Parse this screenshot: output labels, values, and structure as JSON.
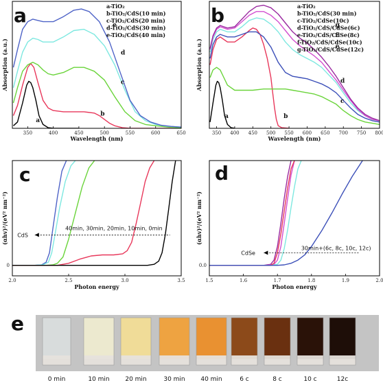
{
  "chart_data": [
    {
      "type": "line",
      "panel_label": "a",
      "xlabel": "Wavelength (nm)",
      "ylabel": "Absorption (a.u.)",
      "xlim": [
        320,
        650
      ],
      "xticks": [
        350,
        400,
        450,
        500,
        550,
        600,
        650
      ],
      "ylim": [
        0,
        1
      ],
      "legend": [
        "a-TiO₂",
        "b-TiO₂/CdS(10 min)",
        "c-TiO₂/CdS(20 min)",
        "d-TiO₂/CdS(30 min)",
        "e-TiO₂/CdS(40 min)"
      ],
      "legend_placement": "top-right",
      "series": [
        {
          "name": "a",
          "color": "#000000",
          "x": [
            322,
            330,
            340,
            348,
            352,
            356,
            360,
            366,
            372,
            380,
            390,
            400,
            420,
            450
          ],
          "y": [
            0.02,
            0.05,
            0.2,
            0.34,
            0.37,
            0.36,
            0.32,
            0.22,
            0.1,
            0.03,
            0.005,
            0,
            0,
            0
          ]
        },
        {
          "name": "b",
          "color": "#e8375a",
          "x": [
            322,
            330,
            340,
            350,
            356,
            362,
            370,
            380,
            390,
            400,
            420,
            440,
            460,
            480,
            490,
            500,
            510,
            520,
            535,
            550,
            580,
            620,
            650
          ],
          "y": [
            0.1,
            0.18,
            0.34,
            0.48,
            0.51,
            0.48,
            0.36,
            0.22,
            0.16,
            0.14,
            0.13,
            0.13,
            0.13,
            0.12,
            0.1,
            0.07,
            0.04,
            0.02,
            0.005,
            0,
            0,
            0,
            0
          ]
        },
        {
          "name": "c",
          "color": "#6ad43a",
          "x": [
            322,
            330,
            340,
            350,
            360,
            370,
            380,
            390,
            400,
            420,
            440,
            460,
            480,
            500,
            520,
            540,
            560,
            580,
            600,
            625,
            650
          ],
          "y": [
            0.2,
            0.32,
            0.45,
            0.5,
            0.52,
            0.5,
            0.46,
            0.43,
            0.42,
            0.44,
            0.48,
            0.48,
            0.45,
            0.38,
            0.25,
            0.13,
            0.06,
            0.03,
            0.02,
            0.01,
            0.005
          ]
        },
        {
          "name": "d",
          "color": "#7de8e0",
          "x": [
            322,
            330,
            340,
            350,
            360,
            370,
            380,
            400,
            420,
            440,
            460,
            480,
            500,
            520,
            540,
            560,
            580,
            600,
            625,
            650
          ],
          "y": [
            0.32,
            0.45,
            0.6,
            0.68,
            0.71,
            0.7,
            0.68,
            0.68,
            0.72,
            0.77,
            0.78,
            0.74,
            0.65,
            0.5,
            0.3,
            0.13,
            0.06,
            0.03,
            0.015,
            0.01
          ]
        },
        {
          "name": "e",
          "color": "#4e63c7",
          "x": [
            322,
            330,
            340,
            350,
            360,
            370,
            380,
            400,
            420,
            440,
            455,
            470,
            490,
            510,
            530,
            550,
            570,
            590,
            610,
            630,
            650
          ],
          "y": [
            0.48,
            0.62,
            0.78,
            0.84,
            0.86,
            0.85,
            0.84,
            0.84,
            0.88,
            0.93,
            0.94,
            0.92,
            0.84,
            0.68,
            0.45,
            0.22,
            0.1,
            0.05,
            0.025,
            0.015,
            0.01
          ]
        }
      ]
    },
    {
      "type": "line",
      "panel_label": "b",
      "xlabel": "Wavelength (nm)",
      "ylabel": "Absorption (a.u.)",
      "xlim": [
        330,
        800
      ],
      "xticks": [
        350,
        400,
        450,
        500,
        550,
        600,
        650,
        700,
        750,
        800
      ],
      "ylim": [
        0,
        1
      ],
      "legend": [
        "a-TiO₂",
        "b-TiO₂/CdS(30 min)",
        "c-TiO₂/CdSe(10c)",
        "d-TiO₂/CdS/CdSe(6c)",
        "e-TiO₂/CdS/CdSe(8c)",
        "f-TiO₂/CdS/CdSe(10c)",
        "g-TiO₂/CdS/CdSe(12c)"
      ],
      "legend_placement": "top-right",
      "series": [
        {
          "name": "a",
          "color": "#000000",
          "x": [
            332,
            340,
            348,
            352,
            356,
            360,
            366,
            372,
            380,
            390,
            400
          ],
          "y": [
            0.05,
            0.2,
            0.34,
            0.37,
            0.36,
            0.32,
            0.22,
            0.1,
            0.03,
            0.005,
            0
          ]
        },
        {
          "name": "b",
          "color": "#e8375a",
          "x": [
            332,
            340,
            350,
            360,
            370,
            380,
            400,
            420,
            440,
            450,
            460,
            470,
            480,
            490,
            500,
            505,
            510,
            515,
            520,
            530,
            550
          ],
          "y": [
            0.5,
            0.62,
            0.7,
            0.72,
            0.7,
            0.68,
            0.68,
            0.72,
            0.77,
            0.79,
            0.78,
            0.74,
            0.66,
            0.55,
            0.4,
            0.28,
            0.16,
            0.07,
            0.02,
            0.005,
            0
          ]
        },
        {
          "name": "c",
          "color": "#6ad43a",
          "x": [
            332,
            340,
            350,
            360,
            370,
            380,
            400,
            420,
            450,
            480,
            500,
            520,
            540,
            560,
            580,
            600,
            620,
            640,
            660,
            680,
            700,
            720,
            740,
            760,
            780,
            800
          ],
          "y": [
            0.4,
            0.46,
            0.48,
            0.46,
            0.4,
            0.34,
            0.3,
            0.3,
            0.3,
            0.31,
            0.31,
            0.31,
            0.31,
            0.3,
            0.29,
            0.28,
            0.27,
            0.25,
            0.22,
            0.19,
            0.14,
            0.1,
            0.07,
            0.05,
            0.04,
            0.03
          ]
        },
        {
          "name": "d",
          "color": "#3b4fb8",
          "x": [
            332,
            340,
            350,
            360,
            370,
            380,
            400,
            420,
            440,
            460,
            480,
            500,
            520,
            540,
            560,
            580,
            600,
            620,
            640,
            660,
            680,
            700,
            720,
            740,
            760,
            780,
            800
          ],
          "y": [
            0.55,
            0.66,
            0.72,
            0.74,
            0.73,
            0.72,
            0.72,
            0.74,
            0.76,
            0.76,
            0.72,
            0.64,
            0.52,
            0.44,
            0.41,
            0.4,
            0.39,
            0.37,
            0.35,
            0.32,
            0.28,
            0.22,
            0.16,
            0.11,
            0.08,
            0.06,
            0.05
          ]
        },
        {
          "name": "e",
          "color": "#7de8e0",
          "x": [
            332,
            340,
            350,
            360,
            370,
            380,
            400,
            420,
            440,
            460,
            480,
            500,
            520,
            540,
            560,
            580,
            600,
            620,
            640,
            660,
            680,
            700,
            720,
            740,
            760,
            780,
            800
          ],
          "y": [
            0.6,
            0.7,
            0.76,
            0.78,
            0.77,
            0.76,
            0.76,
            0.8,
            0.85,
            0.87,
            0.86,
            0.82,
            0.76,
            0.68,
            0.62,
            0.58,
            0.55,
            0.52,
            0.48,
            0.42,
            0.36,
            0.28,
            0.2,
            0.14,
            0.1,
            0.07,
            0.06
          ]
        },
        {
          "name": "f",
          "color": "#d24fd0",
          "x": [
            332,
            340,
            350,
            360,
            370,
            380,
            400,
            420,
            440,
            460,
            480,
            500,
            520,
            540,
            560,
            580,
            600,
            620,
            640,
            660,
            680,
            700,
            720,
            740,
            760,
            780,
            800
          ],
          "y": [
            0.62,
            0.72,
            0.78,
            0.8,
            0.79,
            0.78,
            0.79,
            0.84,
            0.89,
            0.92,
            0.92,
            0.89,
            0.84,
            0.77,
            0.7,
            0.65,
            0.61,
            0.57,
            0.52,
            0.45,
            0.38,
            0.3,
            0.22,
            0.15,
            0.1,
            0.07,
            0.06
          ]
        },
        {
          "name": "g",
          "color": "#9a2aa0",
          "x": [
            332,
            340,
            350,
            360,
            370,
            380,
            400,
            420,
            440,
            460,
            480,
            500,
            520,
            540,
            560,
            580,
            600,
            620,
            640,
            660,
            680,
            700,
            720,
            740,
            760,
            780,
            800
          ],
          "y": [
            0.63,
            0.73,
            0.79,
            0.81,
            0.8,
            0.79,
            0.8,
            0.86,
            0.92,
            0.96,
            0.97,
            0.95,
            0.9,
            0.83,
            0.76,
            0.71,
            0.67,
            0.62,
            0.56,
            0.49,
            0.41,
            0.32,
            0.23,
            0.16,
            0.11,
            0.08,
            0.06
          ]
        }
      ]
    },
    {
      "type": "line",
      "panel_label": "c",
      "xlabel": "Photon energy",
      "ylabel": "(αhv)²/(eV² nm⁻²)",
      "xlim": [
        2.0,
        3.5
      ],
      "xticks": [
        "2.0",
        "2.5",
        "3.0",
        "3.5"
      ],
      "ylim": [
        -0.1,
        1
      ],
      "yticks": [
        "0"
      ],
      "annotation_label": "CdS",
      "annotation_text": "40min, 30min, 20min, 10min, 0min",
      "series": [
        {
          "name": "40min",
          "color": "#4e63c7",
          "x": [
            2.0,
            2.2,
            2.26,
            2.3,
            2.33,
            2.36,
            2.4,
            2.44,
            2.48
          ],
          "y": [
            0,
            0,
            0.005,
            0.03,
            0.12,
            0.35,
            0.65,
            0.9,
            1.0
          ]
        },
        {
          "name": "30min",
          "color": "#7de8e0",
          "x": [
            2.0,
            2.2,
            2.27,
            2.32,
            2.35,
            2.38,
            2.42,
            2.47,
            2.52,
            2.56
          ],
          "y": [
            0,
            0,
            0.005,
            0.03,
            0.12,
            0.3,
            0.55,
            0.8,
            0.95,
            1.0
          ]
        },
        {
          "name": "20min",
          "color": "#6ad43a",
          "x": [
            2.0,
            2.3,
            2.36,
            2.4,
            2.45,
            2.5,
            2.56,
            2.62,
            2.68,
            2.73
          ],
          "y": [
            0,
            0,
            0.005,
            0.02,
            0.08,
            0.25,
            0.5,
            0.75,
            0.93,
            1.0
          ]
        },
        {
          "name": "10min",
          "color": "#e8375a",
          "x": [
            2.0,
            2.4,
            2.5,
            2.6,
            2.7,
            2.8,
            2.9,
            2.98,
            3.02,
            3.06,
            3.1,
            3.14,
            3.18,
            3.22,
            3.26
          ],
          "y": [
            0,
            0,
            0.02,
            0.06,
            0.09,
            0.1,
            0.1,
            0.11,
            0.14,
            0.22,
            0.4,
            0.6,
            0.8,
            0.93,
            1.0
          ]
        },
        {
          "name": "0min",
          "color": "#000000",
          "x": [
            2.0,
            3.2,
            3.26,
            3.3,
            3.33,
            3.36,
            3.39,
            3.42,
            3.45
          ],
          "y": [
            0,
            0,
            0.01,
            0.04,
            0.12,
            0.3,
            0.55,
            0.8,
            1.0
          ]
        }
      ]
    },
    {
      "type": "line",
      "panel_label": "d",
      "xlabel": "Photon energy",
      "ylabel": "(αhv)²/(eV² nm⁻²)",
      "xlim": [
        1.5,
        2.0
      ],
      "xticks": [
        "1.5",
        "1.6",
        "1.7",
        "1.8",
        "1.9",
        "2.0"
      ],
      "ylim": [
        -0.1,
        1
      ],
      "yticks": [
        "0.0"
      ],
      "annotation_label": "CdSe",
      "annotation_text": "30min+(6c, 8c, 10c, 12c)",
      "series": [
        {
          "name": "12c",
          "color": "#9a2aa0",
          "x": [
            1.5,
            1.66,
            1.68,
            1.69,
            1.7,
            1.71,
            1.72,
            1.73,
            1.74
          ],
          "y": [
            0,
            0,
            0.01,
            0.05,
            0.18,
            0.4,
            0.64,
            0.85,
            1.0
          ]
        },
        {
          "name": "10c",
          "color": "#d24fd0",
          "x": [
            1.5,
            1.67,
            1.69,
            1.7,
            1.71,
            1.72,
            1.73,
            1.74,
            1.75
          ],
          "y": [
            0,
            0,
            0.01,
            0.05,
            0.18,
            0.4,
            0.64,
            0.86,
            1.0
          ]
        },
        {
          "name": "8c",
          "color": "#7de8e0",
          "x": [
            1.5,
            1.68,
            1.7,
            1.71,
            1.72,
            1.73,
            1.74,
            1.75,
            1.76,
            1.77
          ],
          "y": [
            0,
            0,
            0.01,
            0.05,
            0.16,
            0.34,
            0.55,
            0.75,
            0.92,
            1.0
          ]
        },
        {
          "name": "10c CdSe",
          "color": "#e8375a",
          "x": [
            1.5,
            1.68,
            1.69,
            1.7,
            1.71,
            1.72,
            1.73,
            1.74,
            1.75
          ],
          "y": [
            0,
            0,
            0.02,
            0.12,
            0.3,
            0.52,
            0.74,
            0.92,
            1.0
          ]
        },
        {
          "name": "6c",
          "color": "#3b4fb8",
          "x": [
            1.5,
            1.7,
            1.72,
            1.74,
            1.76,
            1.78,
            1.8,
            1.83,
            1.86,
            1.89,
            1.92,
            1.95
          ],
          "y": [
            0,
            0,
            0.005,
            0.02,
            0.05,
            0.1,
            0.18,
            0.33,
            0.5,
            0.68,
            0.85,
            1.0
          ]
        }
      ]
    }
  ],
  "panel_e": {
    "label": "e",
    "samples": [
      {
        "caption": "0 min",
        "color": "#d8dcdc"
      },
      {
        "caption": "10 min",
        "color": "#ece9cf"
      },
      {
        "caption": "20 min",
        "color": "#f0dc98"
      },
      {
        "caption": "30 min",
        "color": "#eea341"
      },
      {
        "caption": "40 min",
        "color": "#e99131"
      },
      {
        "caption": "6 c",
        "color": "#8c4a1a"
      },
      {
        "caption": "8 c",
        "color": "#6a3010"
      },
      {
        "caption": "10 c",
        "color": "#2a1208"
      },
      {
        "caption": "12c",
        "color": "#1e0e08"
      }
    ]
  }
}
